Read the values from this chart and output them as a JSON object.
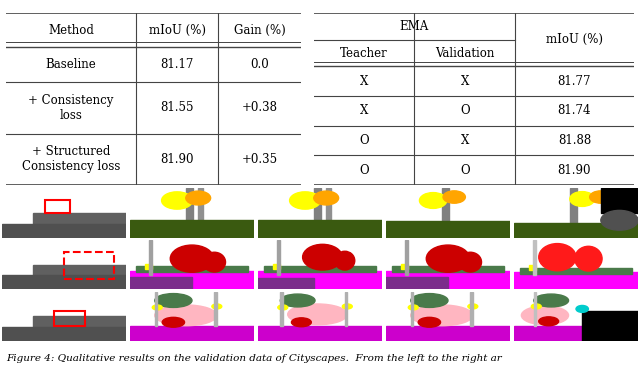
{
  "table1": {
    "col_headers": [
      "Method",
      "mIoU (%)",
      "Gain (%)"
    ],
    "rows": [
      [
        "Baseline",
        "81.17",
        "0.0"
      ],
      [
        "+ Consistency\nloss",
        "81.55",
        "+0.38"
      ],
      [
        "+ Structured\nConsistency loss",
        "81.90",
        "+0.35"
      ]
    ]
  },
  "table2": {
    "ema_header": "EMA",
    "col_headers": [
      "Teacher",
      "Validation",
      "mIoU (%)"
    ],
    "rows": [
      [
        "X",
        "X",
        "81.77"
      ],
      [
        "X",
        "O",
        "81.74"
      ],
      [
        "O",
        "X",
        "81.88"
      ],
      [
        "O",
        "O",
        "81.90"
      ]
    ]
  },
  "caption": "Figure 4: Qualitative results on the validation data of Cityscapes.  From the left to the right ar",
  "bg_color": "#ffffff",
  "line_color": "#444444",
  "font_size": 8.5,
  "seg_row0": {
    "bg": "#4a6b1e",
    "colors": [
      "#808080",
      "#ffff00",
      "#ffa500",
      "#4a6b1e",
      "#000000",
      "#1e4a1e"
    ]
  },
  "seg_row1": {
    "bg": "#808080",
    "colors": [
      "#ff1493",
      "#cc0000",
      "#ff69b4",
      "#7b2d8b",
      "#ff00ff",
      "#4a7a4a"
    ]
  },
  "seg_row2": {
    "bg": "#808080",
    "colors": [
      "#ff00ff",
      "#cc0000",
      "#ffb6c1",
      "#4a7a4a",
      "#ffff00",
      "#00ffff"
    ]
  }
}
